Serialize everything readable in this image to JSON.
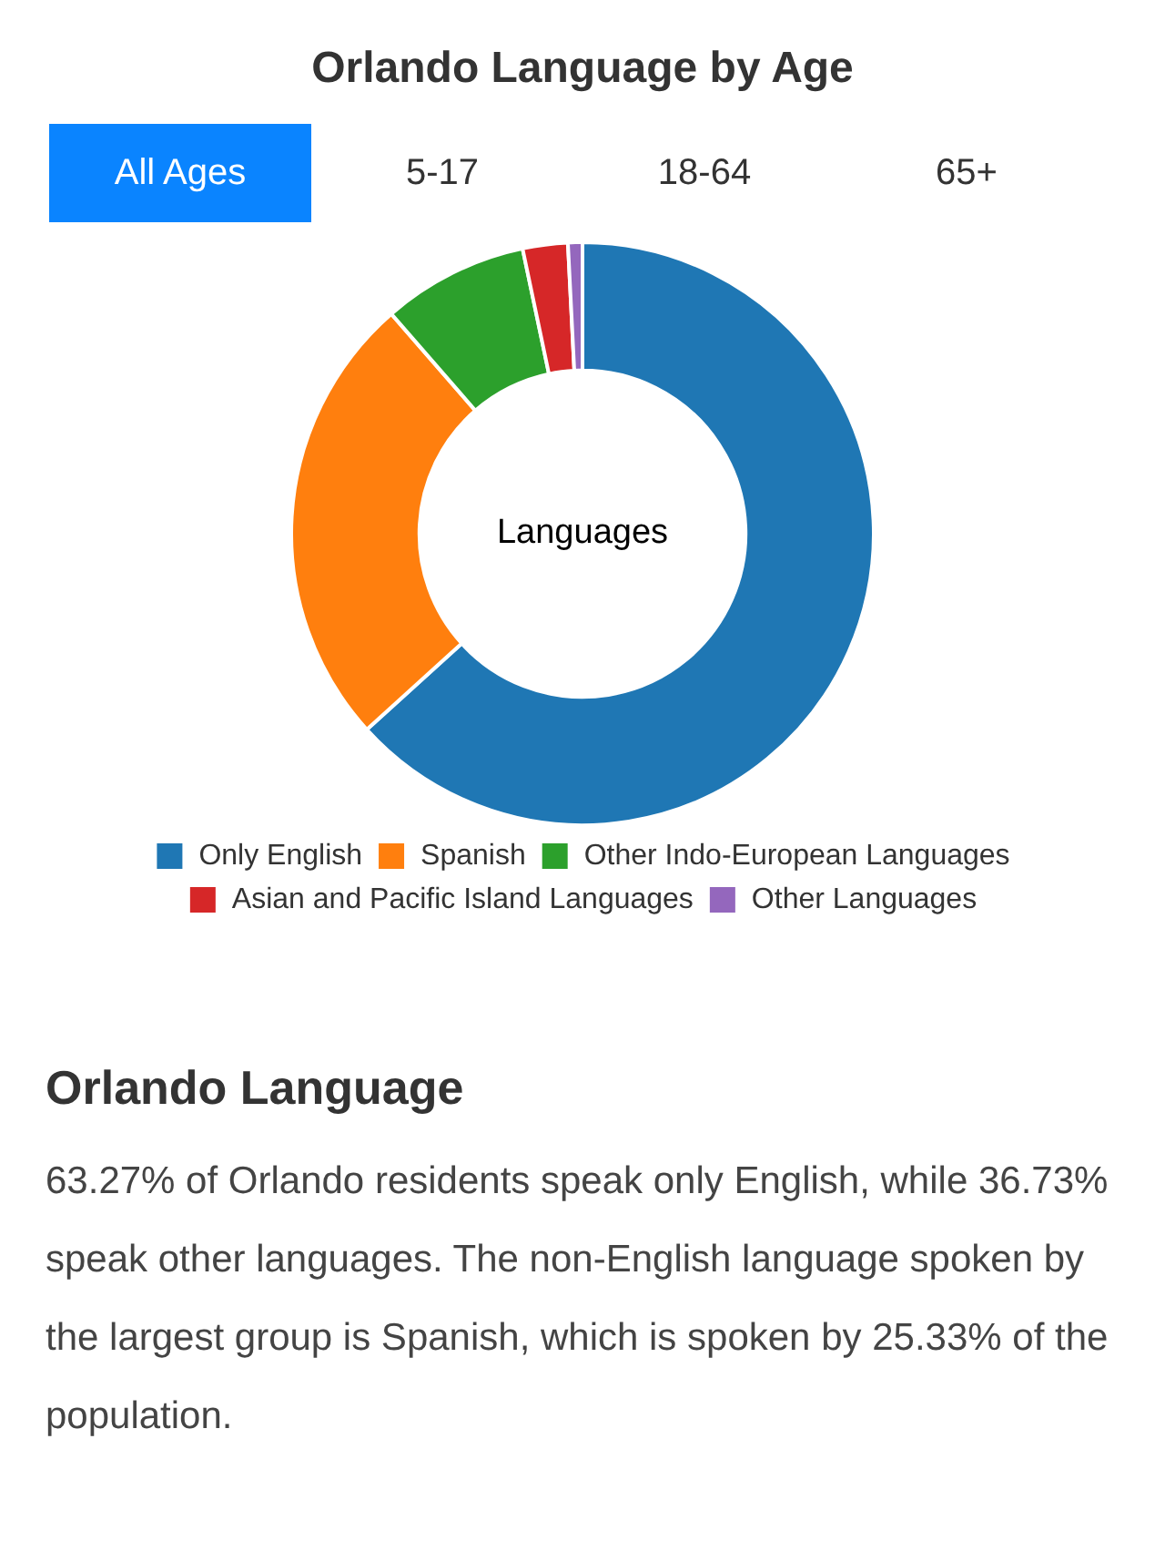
{
  "chart_data": {
    "type": "donut",
    "title": "Orlando Language by Age",
    "categories": [
      "Only English",
      "Spanish",
      "Other Indo-European Languages",
      "Asian and Pacific Island Languages",
      "Other Languages"
    ],
    "values": [
      63.27,
      25.33,
      8.1,
      2.5,
      0.8
    ],
    "colors": [
      "#1f77b4",
      "#ff7f0e",
      "#2ca02c",
      "#d62728",
      "#9467bd"
    ],
    "legend": "bottom",
    "annotations": [
      "All Ages",
      "5-17",
      "18-64",
      "65+",
      "Languages",
      "Orlando Language",
      "63.27% of Orlando residents speak only English, while 36.73% speak other languages. The non-English language spoken by the largest group is Spanish, which is spoken by 25.33% of the population."
    ]
  }
}
